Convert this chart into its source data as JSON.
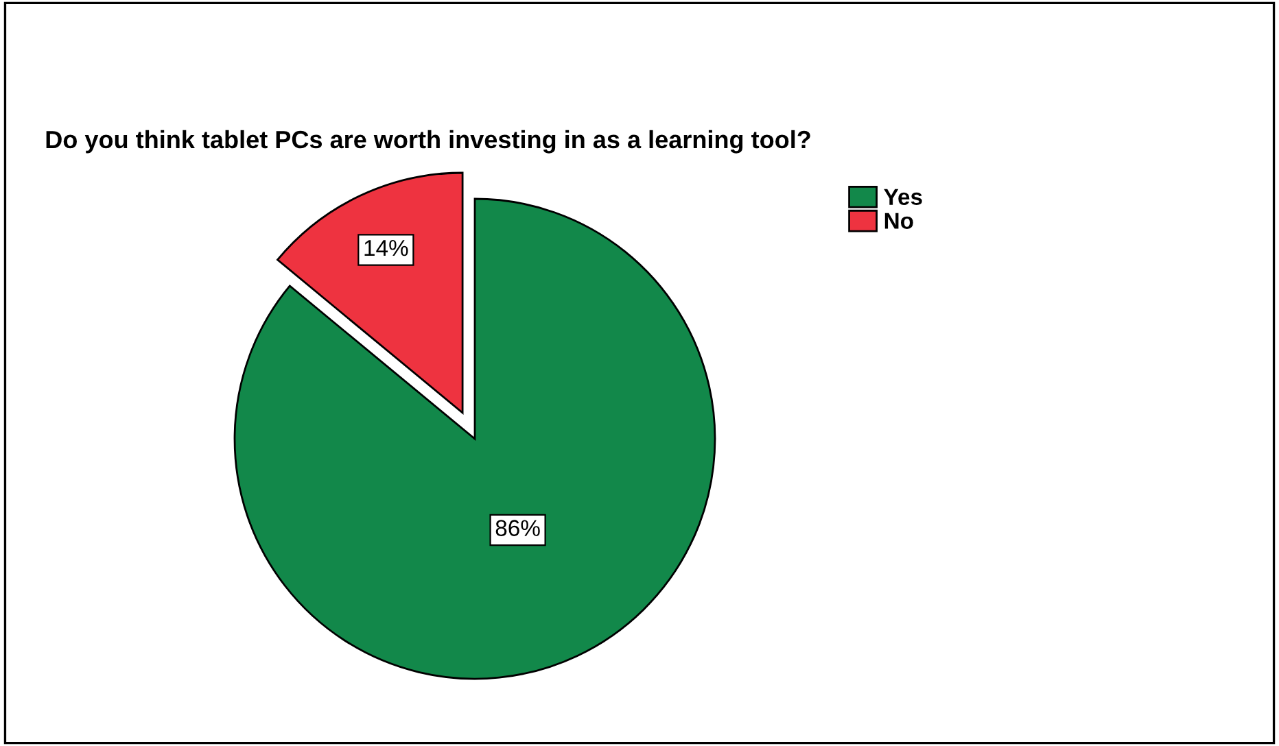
{
  "chart_data": {
    "type": "pie",
    "title": "Do you think tablet PCs are worth investing in as a learning tool?",
    "categories": [
      "Yes",
      "No"
    ],
    "values": [
      86,
      14
    ],
    "colors": [
      "#12884a",
      "#ee3340"
    ],
    "value_labels": [
      "86%",
      "14%"
    ],
    "legend": "top right"
  }
}
